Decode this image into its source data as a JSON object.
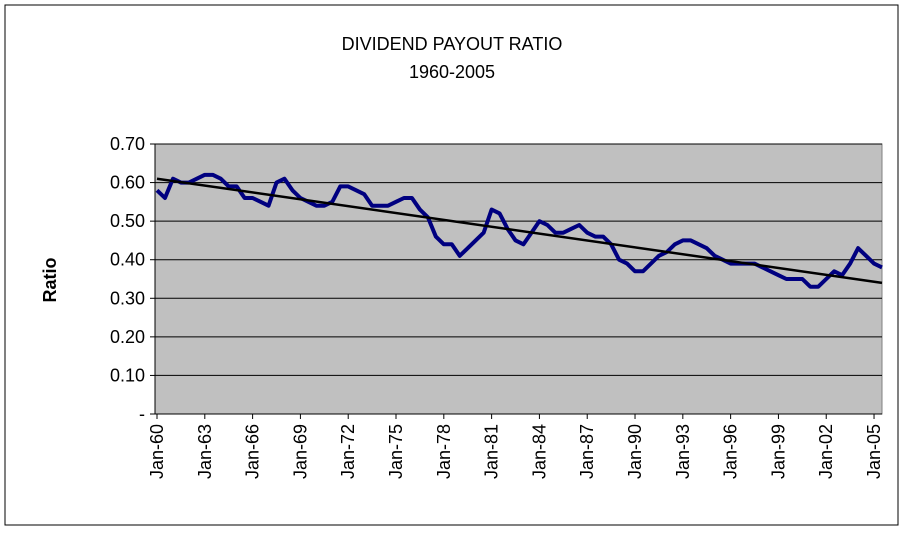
{
  "chart_data": {
    "type": "line",
    "title": "DIVIDEND PAYOUT RATIO",
    "subtitle": "1960-2005",
    "y_label": "Ratio",
    "categories": [
      "Jan-60",
      null,
      null,
      null,
      null,
      null,
      "Jan-63",
      null,
      null,
      null,
      null,
      null,
      "Jan-66",
      null,
      null,
      null,
      null,
      null,
      "Jan-69",
      null,
      null,
      null,
      null,
      null,
      "Jan-72",
      null,
      null,
      null,
      null,
      null,
      "Jan-75",
      null,
      null,
      null,
      null,
      null,
      "Jan-78",
      null,
      null,
      null,
      null,
      null,
      "Jan-81",
      null,
      null,
      null,
      null,
      null,
      "Jan-84",
      null,
      null,
      null,
      null,
      null,
      "Jan-87",
      null,
      null,
      null,
      null,
      null,
      "Jan-90",
      null,
      null,
      null,
      null,
      null,
      "Jan-93",
      null,
      null,
      null,
      null,
      null,
      "Jan-96",
      null,
      null,
      null,
      null,
      null,
      "Jan-99",
      null,
      null,
      null,
      null,
      null,
      "Jan-02",
      null,
      null,
      null,
      null,
      null,
      "Jan-05",
      null
    ],
    "series": [
      {
        "color": "#000080",
        "values": [
          0.58,
          0.56,
          0.61,
          0.6,
          0.6,
          0.61,
          0.62,
          0.62,
          0.61,
          0.59,
          0.59,
          0.56,
          0.56,
          0.55,
          0.54,
          0.6,
          0.61,
          0.58,
          0.56,
          0.55,
          0.54,
          0.54,
          0.55,
          0.59,
          0.59,
          0.58,
          0.57,
          0.54,
          0.54,
          0.54,
          0.55,
          0.56,
          0.56,
          0.53,
          0.51,
          0.46,
          0.44,
          0.44,
          0.41,
          0.43,
          0.45,
          0.47,
          0.53,
          0.52,
          0.48,
          0.45,
          0.44,
          0.47,
          0.5,
          0.49,
          0.47,
          0.47,
          0.48,
          0.49,
          0.47,
          0.46,
          0.46,
          0.44,
          0.4,
          0.39,
          0.37,
          0.37,
          0.39,
          0.41,
          0.42,
          0.44,
          0.45,
          0.45,
          0.44,
          0.43,
          0.41,
          0.4,
          0.39,
          0.39,
          0.39,
          0.39,
          0.38,
          0.37,
          0.36,
          0.35,
          0.35,
          0.35,
          0.33,
          0.33,
          0.35,
          0.37,
          0.36,
          0.39,
          0.43,
          0.41,
          0.39,
          0.38
        ]
      }
    ],
    "trendline": {
      "color": "#000000",
      "values": [
        0.61,
        0.34
      ]
    },
    "ylim": [
      0,
      0.7
    ],
    "yticks": [
      {
        "value": 0,
        "label": "-"
      },
      {
        "value": 0.1,
        "label": "0.10"
      },
      {
        "value": 0.2,
        "label": "0.20"
      },
      {
        "value": 0.3,
        "label": "0.30"
      },
      {
        "value": 0.4,
        "label": "0.40"
      },
      {
        "value": 0.5,
        "label": "0.50"
      },
      {
        "value": 0.6,
        "label": "0.60"
      },
      {
        "value": 0.7,
        "label": "0.70"
      }
    ],
    "grid": true
  }
}
